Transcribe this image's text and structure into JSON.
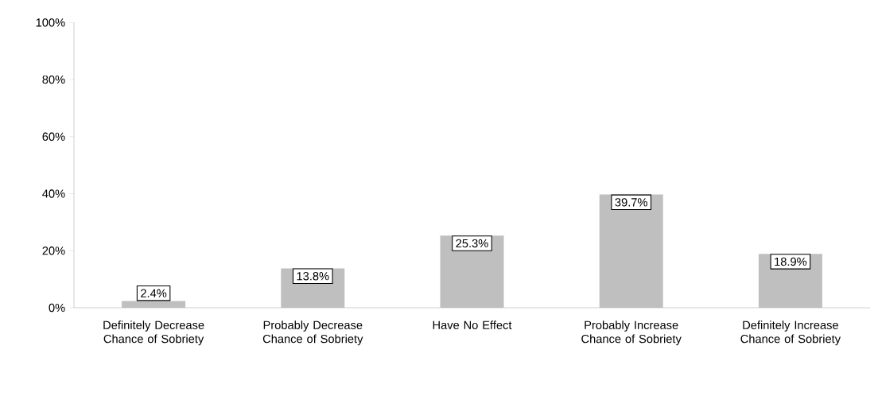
{
  "chart_data": {
    "type": "bar",
    "categories": [
      "Definitely Decrease Chance of Sobriety",
      "Probably Decrease Chance of Sobriety",
      "Have No Effect",
      "Probably Increase Chance of Sobriety",
      "Definitely Increase Chance of Sobriety"
    ],
    "values": [
      2.4,
      13.8,
      25.3,
      39.7,
      18.9
    ],
    "value_labels": [
      "2.4%",
      "13.8%",
      "25.3%",
      "39.7%",
      "18.9%"
    ],
    "color": "#bfbfbf",
    "ylim": [
      0,
      100
    ],
    "yticks": [
      {
        "value": 0,
        "label": "0%"
      },
      {
        "value": 20,
        "label": "20%"
      },
      {
        "value": 40,
        "label": "40%"
      },
      {
        "value": 60,
        "label": "60%"
      },
      {
        "value": 80,
        "label": "80%"
      },
      {
        "value": 100,
        "label": "100%"
      }
    ],
    "grid": false
  }
}
